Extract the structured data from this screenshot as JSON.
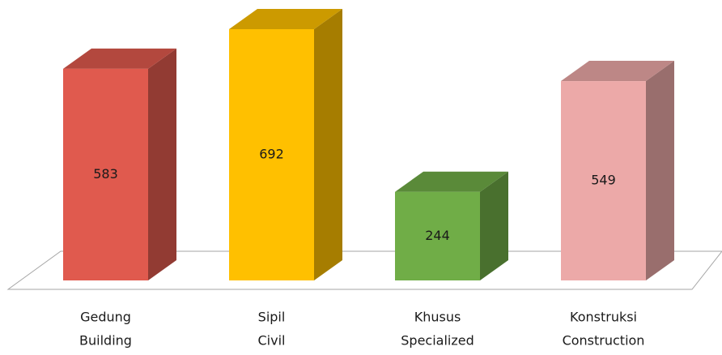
{
  "chart_data": {
    "type": "bar",
    "categories": [
      [
        "Gedung",
        "Building"
      ],
      [
        "Sipil",
        "Civil"
      ],
      [
        "Khusus",
        "Specialized"
      ],
      [
        "Konstruksi",
        "Construction"
      ]
    ],
    "values": [
      583,
      692,
      244,
      549
    ],
    "colors": [
      "#e05a4e",
      "#ffc000",
      "#70ad47",
      "#eca9a8"
    ]
  }
}
